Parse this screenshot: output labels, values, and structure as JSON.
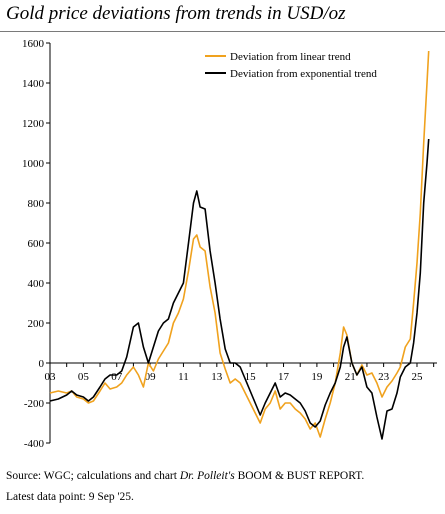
{
  "title": "Gold price deviations from trends in USD/oz",
  "footer": {
    "source_prefix": "Source: WGC; calculations and chart ",
    "author": "Dr. Polleit's",
    "report": " BOOM & BUST REPORT.",
    "latest": "Latest data point: 9 Sep '25."
  },
  "chart_data": {
    "type": "line",
    "title": "Gold price deviations from trends in USD/oz",
    "xlabel": "",
    "ylabel": "",
    "xlim": [
      2003.0,
      2026.2
    ],
    "ylim": [
      -400,
      1600
    ],
    "yticks": [
      -400,
      -200,
      0,
      200,
      400,
      600,
      800,
      1000,
      1200,
      1400,
      1600
    ],
    "xticks": [
      {
        "x": 2003,
        "label": "03"
      },
      {
        "x": 2005,
        "label": "05"
      },
      {
        "x": 2007,
        "label": "07"
      },
      {
        "x": 2009,
        "label": "09"
      },
      {
        "x": 2011,
        "label": "11"
      },
      {
        "x": 2013,
        "label": "13"
      },
      {
        "x": 2015,
        "label": "15"
      },
      {
        "x": 2017,
        "label": "17"
      },
      {
        "x": 2019,
        "label": "19"
      },
      {
        "x": 2021,
        "label": "21"
      },
      {
        "x": 2023,
        "label": "23"
      },
      {
        "x": 2025,
        "label": "25"
      }
    ],
    "grid": false,
    "legend": "top-right",
    "series": [
      {
        "name": "Deviation from linear trend",
        "color": "#f0a21e",
        "x": [
          2003.0,
          2003.5,
          2004.0,
          2004.3,
          2004.6,
          2005.0,
          2005.3,
          2005.6,
          2006.0,
          2006.3,
          2006.6,
          2007.0,
          2007.3,
          2007.6,
          2008.0,
          2008.3,
          2008.6,
          2008.9,
          2009.2,
          2009.5,
          2009.8,
          2010.1,
          2010.4,
          2010.7,
          2011.0,
          2011.3,
          2011.6,
          2011.8,
          2012.0,
          2012.3,
          2012.6,
          2012.9,
          2013.2,
          2013.5,
          2013.8,
          2014.1,
          2014.4,
          2014.7,
          2015.0,
          2015.3,
          2015.6,
          2015.9,
          2016.2,
          2016.5,
          2016.8,
          2017.1,
          2017.4,
          2017.7,
          2018.0,
          2018.3,
          2018.6,
          2018.9,
          2019.2,
          2019.5,
          2019.8,
          2020.1,
          2020.4,
          2020.6,
          2020.8,
          2021.1,
          2021.4,
          2021.7,
          2022.0,
          2022.3,
          2022.6,
          2022.9,
          2023.2,
          2023.5,
          2023.8,
          2024.0,
          2024.3,
          2024.6,
          2024.8,
          2025.0,
          2025.2,
          2025.4,
          2025.6,
          2025.7
        ],
        "values": [
          -150,
          -140,
          -150,
          -140,
          -170,
          -180,
          -200,
          -190,
          -140,
          -100,
          -130,
          -120,
          -100,
          -60,
          -20,
          -60,
          -120,
          0,
          -40,
          20,
          60,
          100,
          200,
          250,
          320,
          460,
          620,
          640,
          580,
          560,
          380,
          250,
          50,
          -30,
          -100,
          -80,
          -100,
          -150,
          -200,
          -250,
          -300,
          -230,
          -200,
          -140,
          -230,
          -200,
          -200,
          -230,
          -250,
          -280,
          -330,
          -300,
          -370,
          -280,
          -200,
          -100,
          50,
          180,
          140,
          0,
          -60,
          -10,
          -60,
          -50,
          -100,
          -170,
          -120,
          -90,
          -50,
          -20,
          80,
          120,
          300,
          500,
          750,
          1100,
          1400,
          1560
        ]
      },
      {
        "name": "Deviation from exponential trend",
        "color": "#000000",
        "x": [
          2003.0,
          2003.5,
          2004.0,
          2004.3,
          2004.6,
          2005.0,
          2005.3,
          2005.6,
          2006.0,
          2006.3,
          2006.6,
          2007.0,
          2007.3,
          2007.6,
          2008.0,
          2008.3,
          2008.6,
          2008.9,
          2009.2,
          2009.5,
          2009.8,
          2010.1,
          2010.4,
          2010.7,
          2011.0,
          2011.3,
          2011.6,
          2011.8,
          2012.0,
          2012.3,
          2012.6,
          2012.9,
          2013.2,
          2013.5,
          2013.8,
          2014.1,
          2014.4,
          2014.7,
          2015.0,
          2015.3,
          2015.6,
          2015.9,
          2016.2,
          2016.5,
          2016.8,
          2017.1,
          2017.4,
          2017.7,
          2018.0,
          2018.3,
          2018.6,
          2018.9,
          2019.2,
          2019.5,
          2019.8,
          2020.1,
          2020.4,
          2020.6,
          2020.8,
          2021.1,
          2021.4,
          2021.7,
          2022.0,
          2022.3,
          2022.6,
          2022.9,
          2023.2,
          2023.5,
          2023.8,
          2024.0,
          2024.3,
          2024.6,
          2024.8,
          2025.0,
          2025.2,
          2025.4,
          2025.6,
          2025.7
        ],
        "values": [
          -190,
          -180,
          -160,
          -140,
          -160,
          -170,
          -190,
          -170,
          -120,
          -80,
          -60,
          -60,
          -40,
          30,
          180,
          200,
          80,
          0,
          80,
          160,
          200,
          220,
          300,
          350,
          400,
          600,
          800,
          860,
          780,
          770,
          560,
          400,
          220,
          70,
          0,
          0,
          -20,
          -80,
          -140,
          -200,
          -260,
          -200,
          -150,
          -100,
          -170,
          -150,
          -160,
          -180,
          -200,
          -240,
          -300,
          -320,
          -290,
          -210,
          -150,
          -100,
          -20,
          80,
          130,
          0,
          -60,
          -20,
          -120,
          -150,
          -270,
          -380,
          -240,
          -230,
          -150,
          -70,
          -20,
          0,
          100,
          250,
          450,
          800,
          1000,
          1120
        ]
      }
    ]
  }
}
